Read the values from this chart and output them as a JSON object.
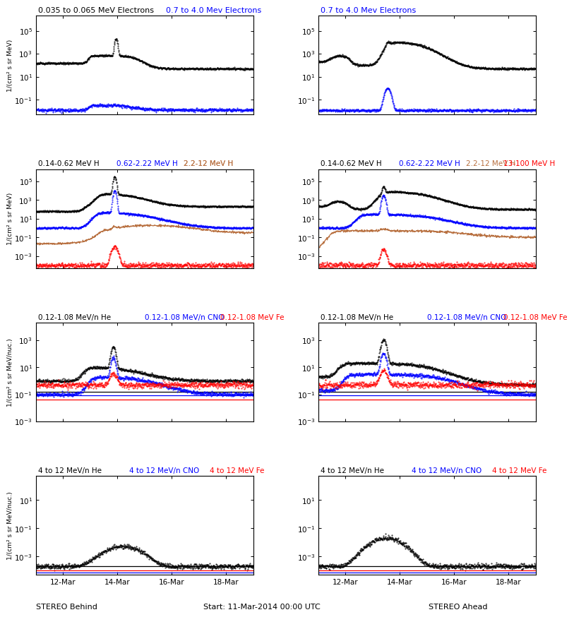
{
  "start_date": "Start: 11-Mar-2014 00:00 UTC",
  "stereo_behind": "STEREO Behind",
  "stereo_ahead": "STEREO Ahead",
  "xtick_labels": [
    "12-Mar",
    "14-Mar",
    "16-Mar",
    "18-Mar"
  ],
  "ylabel_mev": "1/(cm² s sr MeV)",
  "ylabel_mevnuc": "1/(cm² s sr MeV/nuc.)",
  "row0_left_titles": [
    [
      "0.035 to 0.065 MeV Electrons",
      "black"
    ],
    [
      "0.7 to 4.0 Mev Electrons",
      "blue"
    ]
  ],
  "row0_right_titles": [
    [
      "0.7 to 4.0 Mev Electrons",
      "blue"
    ]
  ],
  "row1_titles": [
    [
      "0.14-0.62 MeV H",
      "black"
    ],
    [
      "0.62-2.22 MeV H",
      "blue"
    ],
    [
      "2.2-12 MeV H",
      "#b87040"
    ],
    [
      "13-100 MeV H",
      "red"
    ]
  ],
  "row2_titles": [
    [
      "0.12-1.08 MeV/n He",
      "black"
    ],
    [
      "0.12-1.08 MeV/n CNO",
      "blue"
    ],
    [
      "0.12-1.08 MeV Fe",
      "red"
    ]
  ],
  "row3_titles": [
    [
      "4 to 12 MeV/n He",
      "black"
    ],
    [
      "4 to 12 MeV/n CNO",
      "blue"
    ],
    [
      "4 to 12 MeV Fe",
      "red"
    ]
  ],
  "colors": {
    "black": "#000000",
    "blue": "#0000ff",
    "brown": "#b87040",
    "red": "#ff0000"
  }
}
